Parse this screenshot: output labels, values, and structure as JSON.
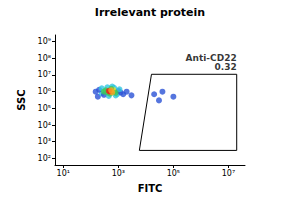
{
  "chart_data": {
    "type": "scatter",
    "title": "Irrelevant protein",
    "x_label": "FITC",
    "y_label": "SSC",
    "log": true,
    "grid": false,
    "xlim": [
      5,
      40000000
    ],
    "ylim": [
      40,
      2500000000
    ],
    "xticks": [
      {
        "value": 10,
        "label": "10¹"
      },
      {
        "value": 1000,
        "label": "10³"
      },
      {
        "value": 100000,
        "label": "10⁵"
      },
      {
        "value": 10000000,
        "label": "10⁷"
      }
    ],
    "yticks": [
      {
        "value": 100,
        "label": "10²"
      },
      {
        "value": 1000,
        "label": "10³"
      },
      {
        "value": 10000,
        "label": "10⁴"
      },
      {
        "value": 100000,
        "label": "10⁵"
      },
      {
        "value": 1000000,
        "label": "10⁶"
      },
      {
        "value": 10000000,
        "label": "10⁷"
      },
      {
        "value": 100000000,
        "label": "10⁸"
      },
      {
        "value": 1000000000,
        "label": "10⁹"
      }
    ],
    "points": [
      [
        1500,
        700000
      ],
      [
        2000,
        1000000
      ],
      [
        180,
        500000
      ],
      [
        3000,
        600000
      ],
      [
        20000,
        700000
      ],
      [
        40000,
        1000000
      ],
      [
        100000,
        500000
      ],
      [
        30000,
        300000
      ],
      [
        250,
        800000
      ],
      [
        900,
        700000
      ],
      [
        1000,
        1100000
      ],
      [
        200,
        1300000
      ],
      [
        400,
        1800000
      ],
      [
        700,
        1700000
      ],
      [
        300,
        650000
      ],
      [
        1200,
        900000
      ],
      [
        150,
        1000000
      ],
      [
        600,
        2000000
      ],
      [
        450,
        550000
      ],
      [
        1100,
        1400000
      ],
      [
        800,
        600000
      ],
      [
        250,
        1600000
      ],
      [
        400,
        900000
      ],
      [
        700,
        1000000
      ],
      [
        350,
        1200000
      ],
      [
        650,
        1300000
      ],
      [
        500,
        750000
      ],
      [
        800,
        850000
      ],
      [
        300,
        1000000
      ],
      [
        550,
        1500000
      ],
      [
        500,
        1000000
      ],
      [
        600,
        900000
      ],
      [
        450,
        1100000
      ],
      [
        550,
        1200000
      ]
    ],
    "colors": [
      "#2a52d6",
      "#2a52d6",
      "#2a52d6",
      "#2a52d6",
      "#2a52d6",
      "#2a52d6",
      "#2a52d6",
      "#2a52d6",
      "#2fc6e0",
      "#2fc6e0",
      "#2a52d6",
      "#2a52d6",
      "#2fc6e0",
      "#2fc6e0",
      "#2a52d6",
      "#2a52d6",
      "#2a52d6",
      "#2fc6e0",
      "#2fc6e0",
      "#2fc6e0",
      "#2fc6e0",
      "#2fc6e0",
      "#3cc85a",
      "#3cc85a",
      "#3cc85a",
      "#e5e52a",
      "#3cc85a",
      "#3cc85a",
      "#3cc85a",
      "#3cc85a",
      "#e8261a",
      "#f5a623",
      "#e8261a",
      "#f5a623"
    ],
    "gate": {
      "name": "Anti-CD22",
      "percent": 0.32,
      "vertices": [
        [
          16000,
          11000000
        ],
        [
          20000000,
          11000000
        ],
        [
          20000000,
          300
        ],
        [
          5800,
          300
        ]
      ]
    }
  }
}
